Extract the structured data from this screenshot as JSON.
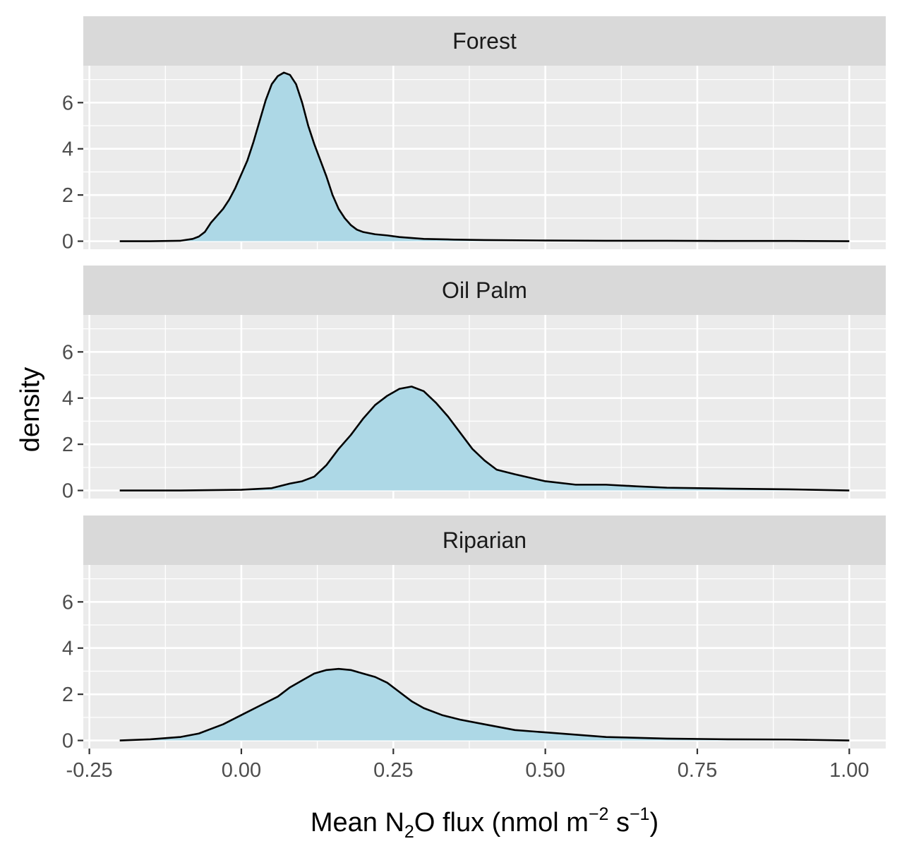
{
  "chart_data": {
    "type": "area",
    "subtype": "faceted density",
    "xlabel": {
      "parts": [
        {
          "text": "Mean N",
          "style": "normal"
        },
        {
          "text": "2",
          "style": "sub"
        },
        {
          "text": "O flux (nmol m",
          "style": "normal"
        },
        {
          "text": "−2",
          "style": "sup"
        },
        {
          "text": " s",
          "style": "normal"
        },
        {
          "text": "−1",
          "style": "sup"
        },
        {
          "text": ")",
          "style": "normal"
        }
      ]
    },
    "ylabel": "density",
    "xlim": [
      -0.26,
      1.06
    ],
    "ylim": [
      -0.35,
      7.6
    ],
    "x_ticks": [
      -0.25,
      0.0,
      0.25,
      0.5,
      0.75,
      1.0
    ],
    "x_tick_labels": [
      "-0.25",
      "0.00",
      "0.25",
      "0.50",
      "0.75",
      "1.00"
    ],
    "y_ticks": [
      0,
      2,
      4,
      6
    ],
    "y_tick_labels": [
      "0",
      "2",
      "4",
      "6"
    ],
    "grid": true,
    "fill_color": "#add8e6",
    "line_color": "#000000",
    "panel_background": "#ebebeb",
    "strip_background": "#d9d9d9",
    "grid_color": "#ffffff",
    "facets": [
      {
        "name": "Forest",
        "x": [
          -0.2,
          -0.15,
          -0.1,
          -0.08,
          -0.07,
          -0.06,
          -0.05,
          -0.04,
          -0.03,
          -0.02,
          -0.01,
          0.0,
          0.01,
          0.02,
          0.03,
          0.04,
          0.05,
          0.06,
          0.07,
          0.08,
          0.09,
          0.1,
          0.11,
          0.12,
          0.13,
          0.14,
          0.15,
          0.16,
          0.17,
          0.18,
          0.19,
          0.2,
          0.22,
          0.24,
          0.26,
          0.3,
          0.35,
          0.4,
          0.5,
          0.6,
          0.7,
          0.8,
          0.9,
          1.0
        ],
        "values": [
          0.0,
          0.0,
          0.02,
          0.1,
          0.2,
          0.4,
          0.8,
          1.1,
          1.4,
          1.8,
          2.3,
          2.9,
          3.5,
          4.3,
          5.2,
          6.1,
          6.8,
          7.15,
          7.3,
          7.2,
          6.8,
          6.0,
          5.0,
          4.2,
          3.5,
          2.8,
          2.0,
          1.4,
          1.0,
          0.7,
          0.5,
          0.4,
          0.3,
          0.25,
          0.18,
          0.1,
          0.07,
          0.05,
          0.03,
          0.02,
          0.02,
          0.01,
          0.01,
          0.0
        ]
      },
      {
        "name": "Oil Palm",
        "x": [
          -0.2,
          -0.1,
          0.0,
          0.05,
          0.08,
          0.1,
          0.12,
          0.14,
          0.16,
          0.18,
          0.2,
          0.22,
          0.24,
          0.26,
          0.28,
          0.3,
          0.32,
          0.34,
          0.36,
          0.38,
          0.4,
          0.42,
          0.45,
          0.5,
          0.55,
          0.6,
          0.65,
          0.7,
          0.8,
          0.9,
          1.0
        ],
        "values": [
          0.0,
          0.0,
          0.03,
          0.1,
          0.3,
          0.4,
          0.6,
          1.1,
          1.8,
          2.4,
          3.1,
          3.7,
          4.1,
          4.4,
          4.5,
          4.3,
          3.8,
          3.2,
          2.5,
          1.8,
          1.3,
          0.9,
          0.7,
          0.4,
          0.25,
          0.25,
          0.18,
          0.12,
          0.08,
          0.05,
          0.0
        ]
      },
      {
        "name": "Riparian",
        "x": [
          -0.2,
          -0.15,
          -0.1,
          -0.07,
          -0.05,
          -0.03,
          0.0,
          0.03,
          0.06,
          0.08,
          0.1,
          0.12,
          0.14,
          0.16,
          0.18,
          0.2,
          0.22,
          0.24,
          0.26,
          0.28,
          0.3,
          0.33,
          0.36,
          0.4,
          0.45,
          0.5,
          0.6,
          0.7,
          0.8,
          0.9,
          1.0
        ],
        "values": [
          0.0,
          0.05,
          0.15,
          0.3,
          0.5,
          0.7,
          1.1,
          1.5,
          1.9,
          2.3,
          2.6,
          2.9,
          3.05,
          3.1,
          3.05,
          2.9,
          2.75,
          2.5,
          2.1,
          1.7,
          1.4,
          1.1,
          0.9,
          0.7,
          0.45,
          0.35,
          0.15,
          0.08,
          0.05,
          0.04,
          0.0
        ]
      }
    ]
  }
}
